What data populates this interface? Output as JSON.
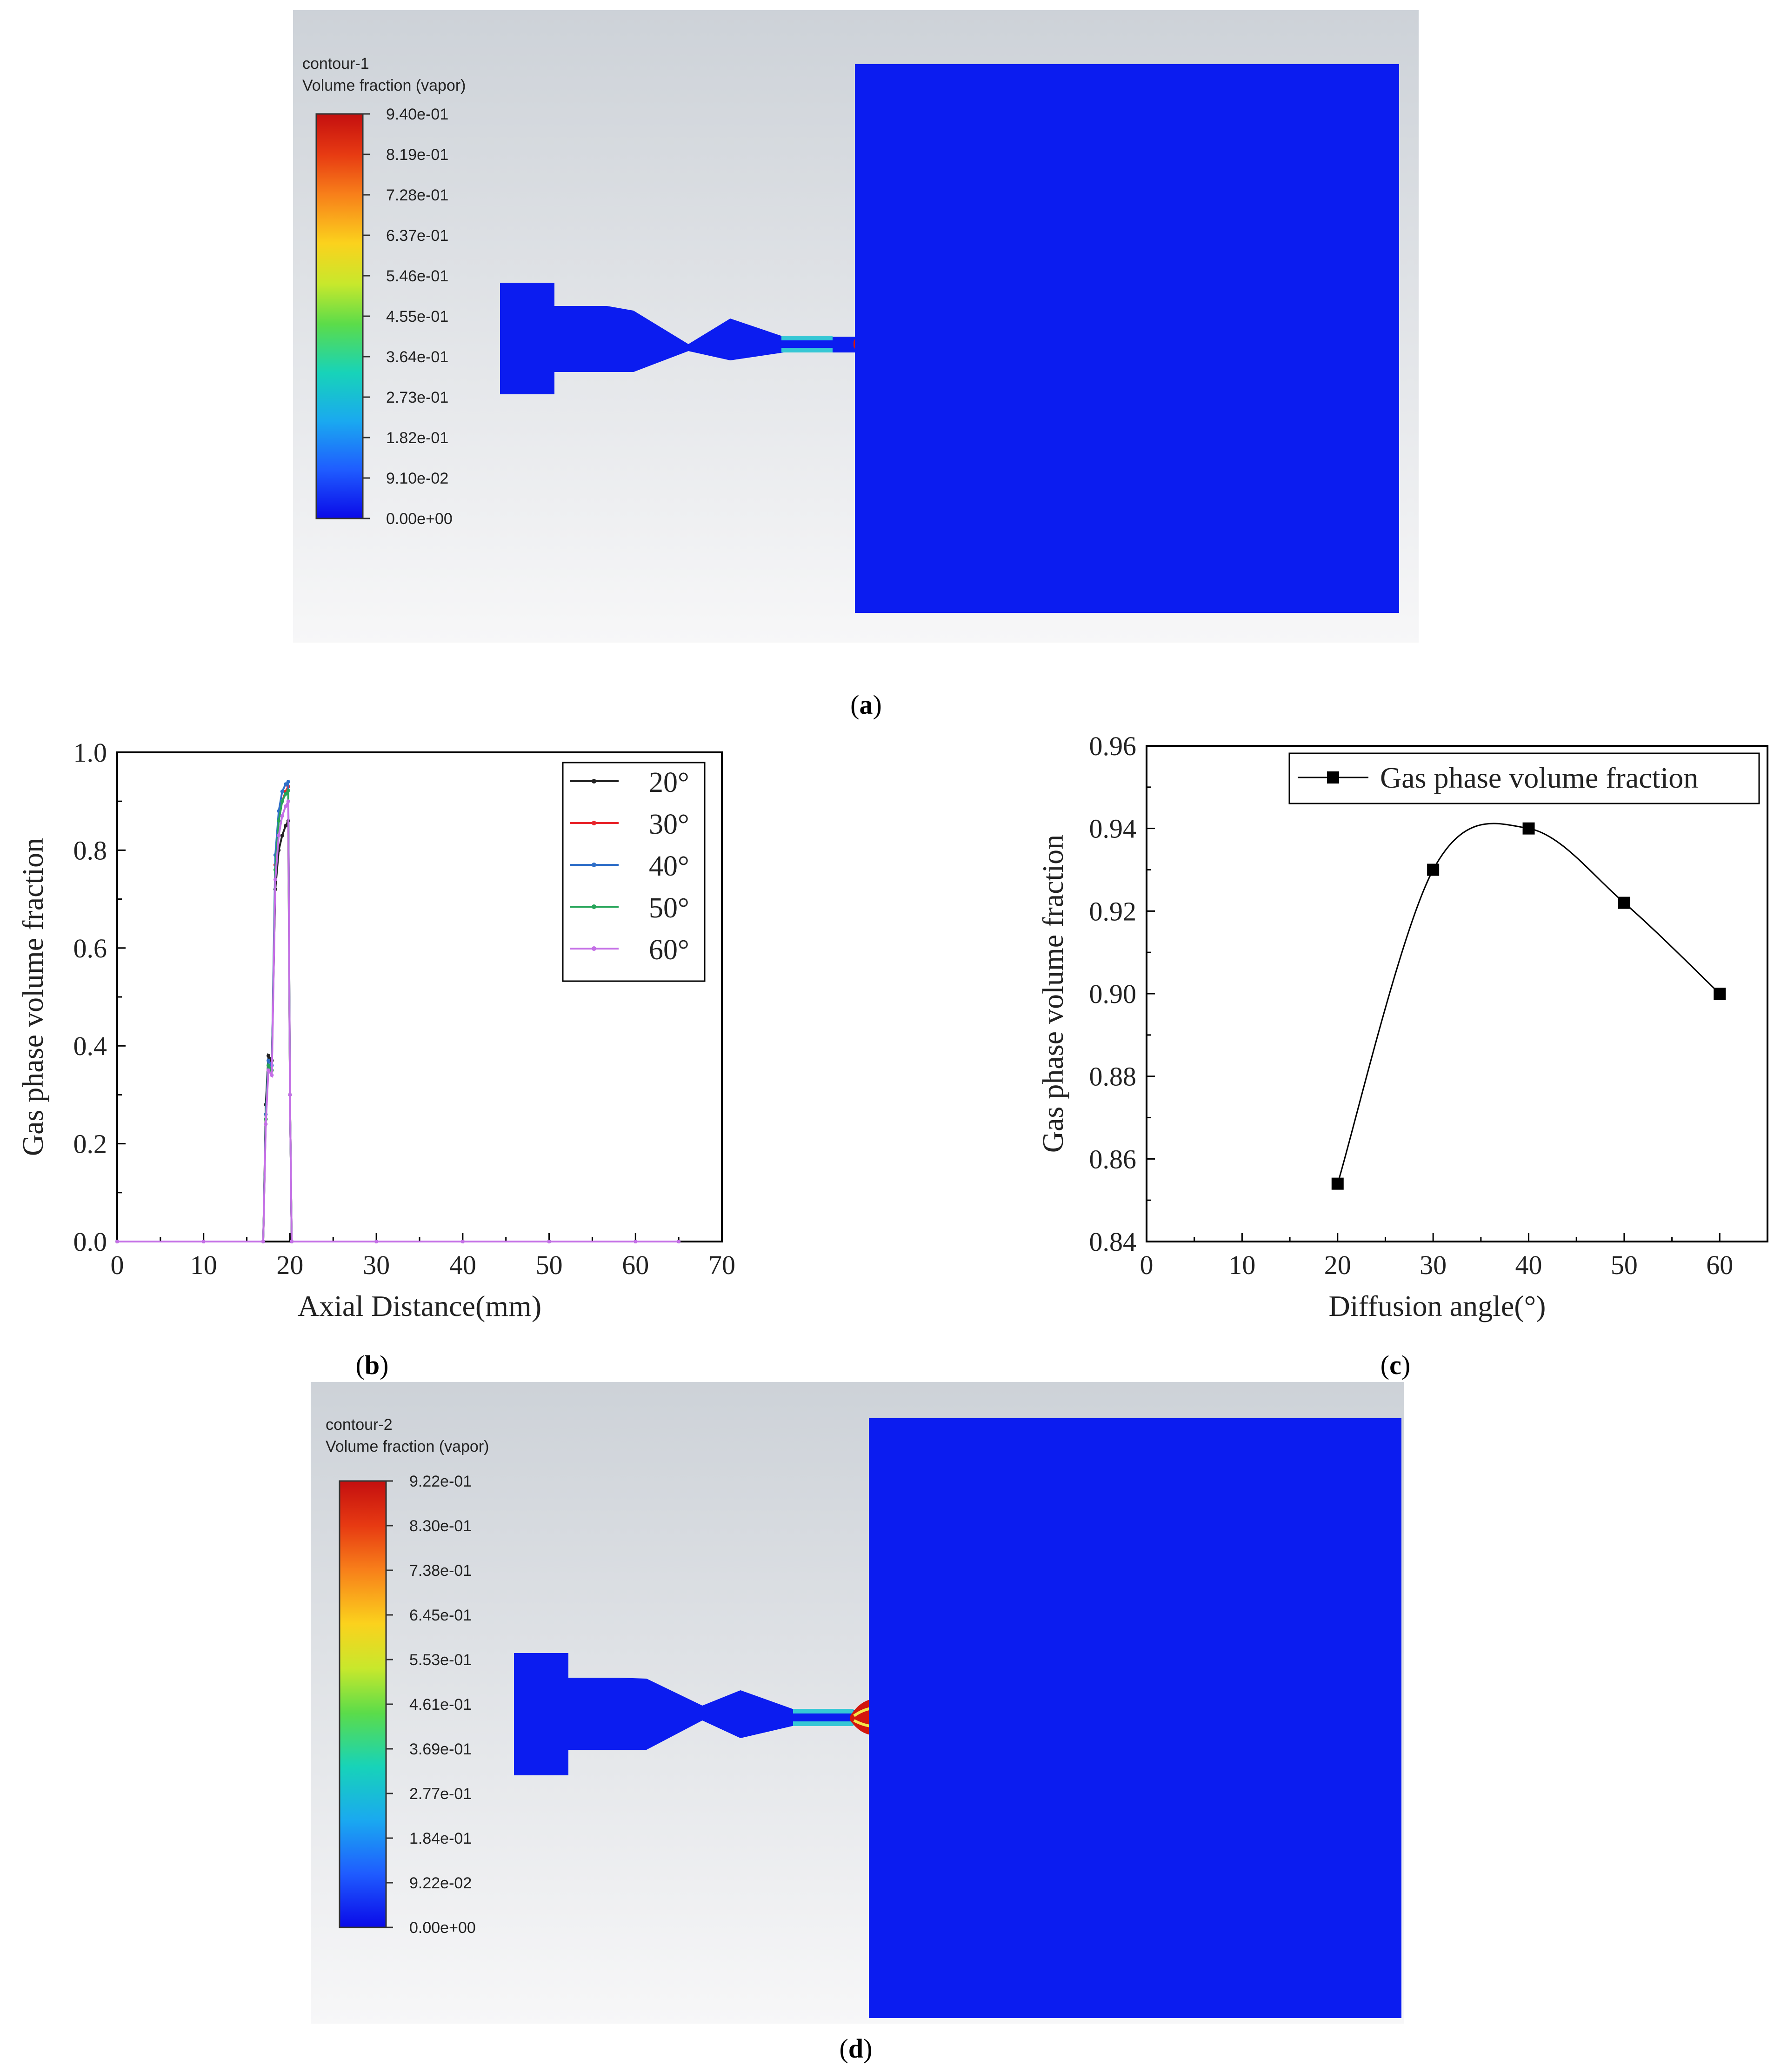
{
  "panels": {
    "a": {
      "label_open": "(",
      "label_letter": "a",
      "label_close": ")",
      "legend": {
        "title_line1": "contour-1",
        "title_line2": "Volume fraction (vapor)",
        "ticks": [
          "9.40e-01",
          "8.19e-01",
          "7.28e-01",
          "6.37e-01",
          "5.46e-01",
          "4.55e-01",
          "3.64e-01",
          "2.73e-01",
          "1.82e-01",
          "9.10e-02",
          "0.00e+00"
        ]
      }
    },
    "b": {
      "label_open": "(",
      "label_letter": "b",
      "label_close": ")"
    },
    "c": {
      "label_open": "(",
      "label_letter": "c",
      "label_close": ")"
    },
    "d": {
      "label_open": "(",
      "label_letter": "d",
      "label_close": ")",
      "legend": {
        "title_line1": "contour-2",
        "title_line2": "Volume fraction (vapor)",
        "ticks": [
          "9.22e-01",
          "8.30e-01",
          "7.38e-01",
          "6.45e-01",
          "5.53e-01",
          "4.61e-01",
          "3.69e-01",
          "2.77e-01",
          "1.84e-01",
          "9.22e-02",
          "0.00e+00"
        ]
      }
    }
  },
  "colors": {
    "field_blue": "#0b1cf0",
    "bg_gray": "#d7dbe0",
    "series_20": "#222222",
    "series_30": "#e8262c",
    "series_40": "#2f6fc8",
    "series_50": "#27a55a",
    "series_60": "#c46fe6"
  },
  "chart_data": [
    {
      "id": "b",
      "type": "line",
      "xlabel": "Axial Distance(mm)",
      "ylabel": "Gas phase volume fraction",
      "xlim": [
        0,
        70
      ],
      "ylim": [
        0,
        1.0
      ],
      "xticks": [
        0,
        10,
        20,
        30,
        40,
        50,
        60,
        70
      ],
      "xtick_labels": [
        "0",
        "10",
        "20",
        "30",
        "40",
        "50",
        "60",
        "70"
      ],
      "yticks": [
        0.0,
        0.2,
        0.4,
        0.6,
        0.8,
        1.0
      ],
      "ytick_labels": [
        "0.0",
        "0.2",
        "0.4",
        "0.6",
        "0.8",
        "1.0"
      ],
      "legend_position": "top-right",
      "series": [
        {
          "name": "20°",
          "color": "#222222",
          "x": [
            0,
            10,
            16.9,
            17.2,
            17.5,
            17.9,
            18.3,
            18.7,
            19.1,
            19.5,
            19.8,
            20.0,
            20.2,
            30,
            40,
            50,
            60,
            65
          ],
          "y": [
            0,
            0,
            0,
            0.28,
            0.38,
            0.37,
            0.72,
            0.8,
            0.83,
            0.85,
            0.86,
            0.3,
            0,
            0,
            0,
            0,
            0,
            0
          ]
        },
        {
          "name": "30°",
          "color": "#e8262c",
          "x": [
            0,
            10,
            16.9,
            17.2,
            17.5,
            17.9,
            18.3,
            18.7,
            19.1,
            19.5,
            19.8,
            20.0,
            20.2,
            30,
            40,
            50,
            60,
            65
          ],
          "y": [
            0,
            0,
            0,
            0.25,
            0.36,
            0.35,
            0.77,
            0.86,
            0.9,
            0.92,
            0.93,
            0.3,
            0,
            0,
            0,
            0,
            0,
            0
          ]
        },
        {
          "name": "40°",
          "color": "#2f6fc8",
          "x": [
            0,
            10,
            16.9,
            17.2,
            17.5,
            17.9,
            18.3,
            18.7,
            19.1,
            19.5,
            19.8,
            20.0,
            20.2,
            30,
            40,
            50,
            60,
            65
          ],
          "y": [
            0,
            0,
            0,
            0.26,
            0.37,
            0.36,
            0.79,
            0.88,
            0.92,
            0.935,
            0.94,
            0.3,
            0,
            0,
            0,
            0,
            0,
            0
          ]
        },
        {
          "name": "50°",
          "color": "#27a55a",
          "x": [
            0,
            10,
            16.9,
            17.2,
            17.5,
            17.9,
            18.3,
            18.7,
            19.1,
            19.5,
            19.8,
            20.0,
            20.2,
            30,
            40,
            50,
            60,
            65
          ],
          "y": [
            0,
            0,
            0,
            0.25,
            0.36,
            0.35,
            0.76,
            0.86,
            0.9,
            0.915,
            0.922,
            0.3,
            0,
            0,
            0,
            0,
            0,
            0
          ]
        },
        {
          "name": "60°",
          "color": "#c46fe6",
          "x": [
            0,
            10,
            16.9,
            17.2,
            17.5,
            17.9,
            18.3,
            18.7,
            19.1,
            19.5,
            19.8,
            20.0,
            20.2,
            30,
            40,
            50,
            60,
            65
          ],
          "y": [
            0,
            0,
            0,
            0.24,
            0.35,
            0.34,
            0.74,
            0.83,
            0.87,
            0.89,
            0.9,
            0.3,
            0,
            0,
            0,
            0,
            0,
            0
          ]
        }
      ]
    },
    {
      "id": "c",
      "type": "line",
      "xlabel": "Diffusion angle(°)",
      "ylabel": "Gas phase volume fraction",
      "xlim": [
        0,
        65
      ],
      "ylim": [
        0.84,
        0.96
      ],
      "xticks": [
        0,
        10,
        20,
        30,
        40,
        50,
        60
      ],
      "xtick_labels": [
        "0",
        "10",
        "20",
        "30",
        "40",
        "50",
        "60"
      ],
      "yticks": [
        0.84,
        0.86,
        0.88,
        0.9,
        0.92,
        0.94,
        0.96
      ],
      "ytick_labels": [
        "0.84",
        "0.86",
        "0.88",
        "0.90",
        "0.92",
        "0.94",
        "0.96"
      ],
      "legend_position": "top-right",
      "series": [
        {
          "name": "Gas phase volume fraction",
          "color": "#000000",
          "x": [
            20,
            30,
            40,
            50,
            60
          ],
          "y": [
            0.854,
            0.93,
            0.94,
            0.922,
            0.9
          ]
        }
      ]
    }
  ]
}
